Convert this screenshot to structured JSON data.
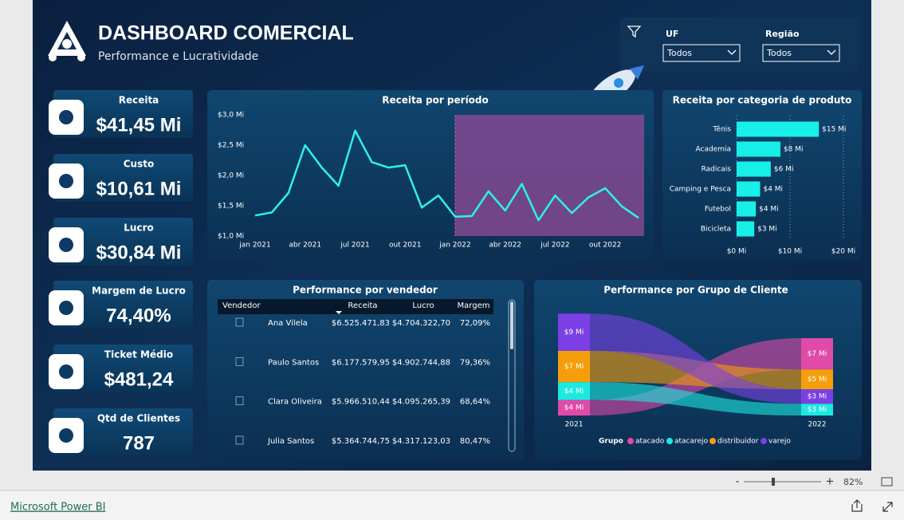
{
  "header": {
    "title": "DASHBOARD COMERCIAL",
    "subtitle": "Performance e Lucratividade"
  },
  "filters": [
    {
      "label": "UF",
      "value": "Todos"
    },
    {
      "label": "Região",
      "value": "Todos"
    }
  ],
  "kpis": [
    {
      "label": "Receita",
      "value": "$41,45 Mi"
    },
    {
      "label": "Custo",
      "value": "$10,61 Mi"
    },
    {
      "label": "Lucro",
      "value": "$30,84 Mi"
    },
    {
      "label": "Margem de Lucro",
      "value": "74,40%"
    },
    {
      "label": "Ticket Médio",
      "value": "$481,24"
    },
    {
      "label": "Qtd de Clientes",
      "value": "787"
    }
  ],
  "chart_data": [
    {
      "type": "line",
      "title": "Receita por período",
      "categories": [
        "jan 2021",
        null,
        null,
        "abr 2021",
        null,
        null,
        "jul 2021",
        null,
        null,
        "out 2021",
        null,
        null,
        "jan 2022",
        null,
        null,
        "abr 2022",
        null,
        null,
        "jul 2022",
        null,
        null,
        "out 2022",
        null,
        null
      ],
      "values": [
        1.34,
        1.39,
        1.71,
        2.5,
        2.13,
        1.83,
        2.74,
        2.22,
        2.13,
        2.17,
        1.47,
        1.67,
        1.32,
        1.33,
        1.74,
        1.42,
        1.86,
        1.26,
        1.67,
        1.38,
        1.64,
        1.79,
        1.49,
        1.3
      ],
      "color": "#2ef2e6",
      "ylim": [
        1,
        3
      ],
      "yticks": [
        {
          "value": 1,
          "label": "$1,0 Mi"
        },
        {
          "value": 1.5,
          "label": "$1,5 Mi"
        },
        {
          "value": 2,
          "label": "$2,0 Mi"
        },
        {
          "value": 2.5,
          "label": "$2,5 Mi"
        },
        {
          "value": 3,
          "label": "$3,0 Mi"
        }
      ]
    },
    {
      "type": "bar",
      "orientation": "horizontal",
      "title": "Receita por categoria de produto",
      "categories": [
        "Tênis",
        "Academia",
        "Radicais",
        "Camping e Pesca",
        "Futebol",
        "Bicicleta"
      ],
      "values": [
        15.4,
        8.2,
        6.4,
        4.4,
        3.6,
        3.3
      ],
      "value_labels": [
        "$15 Mi",
        "$8 Mi",
        "$6 Mi",
        "$4 Mi",
        "$4 Mi",
        "$3 Mi"
      ],
      "color": "#17f0e8",
      "xlim": [
        0,
        20
      ],
      "xticks": [
        {
          "value": 0,
          "label": "$0 Mi"
        },
        {
          "value": 10,
          "label": "$10 Mi"
        },
        {
          "value": 20,
          "label": "$20 Mi"
        }
      ],
      "grid": true
    },
    {
      "type": "ribbon",
      "title": "Performance por Grupo de Cliente",
      "categories": [
        "2021",
        "2022"
      ],
      "legend_title": "Grupo",
      "series": [
        {
          "name": "atacado",
          "color": "#e04aa8",
          "values": [
            3.7,
            7.4
          ],
          "value_labels": [
            "$4 Mi",
            "$7 Mi"
          ]
        },
        {
          "name": "atacarejo",
          "color": "#1de9e0",
          "values": [
            4.2,
            2.8
          ],
          "value_labels": [
            "$4 Mi",
            "$3 Mi"
          ]
        },
        {
          "name": "distribuidor",
          "color": "#f59e0b",
          "values": [
            7.4,
            4.7
          ],
          "value_labels": [
            "$7 Mi",
            "$5 Mi"
          ]
        },
        {
          "name": "varejo",
          "color": "#7b3fe4",
          "values": [
            8.8,
            3.4
          ],
          "value_labels": [
            "$9 Mi",
            "$3 Mi"
          ]
        }
      ]
    }
  ],
  "table": {
    "title": "Performance por vendedor",
    "columns": [
      "Vendedor",
      "Receita",
      "Lucro",
      "Margem"
    ],
    "rows": [
      [
        "Ana Vilela",
        "$6.525.471,83",
        "$4.704.322,70",
        "72,09%"
      ],
      [
        "Paulo Santos",
        "$6.177.579,95",
        "$4.902.744,88",
        "79,36%"
      ],
      [
        "Clara Oliveira",
        "$5.966.510,44",
        "$4.095.265,39",
        "68,64%"
      ],
      [
        "Julia Santos",
        "$5.364.744,75",
        "$4.317.123,03",
        "80,47%"
      ]
    ]
  },
  "zoom": "82%",
  "footer": {
    "link": "Microsoft Power BI"
  }
}
